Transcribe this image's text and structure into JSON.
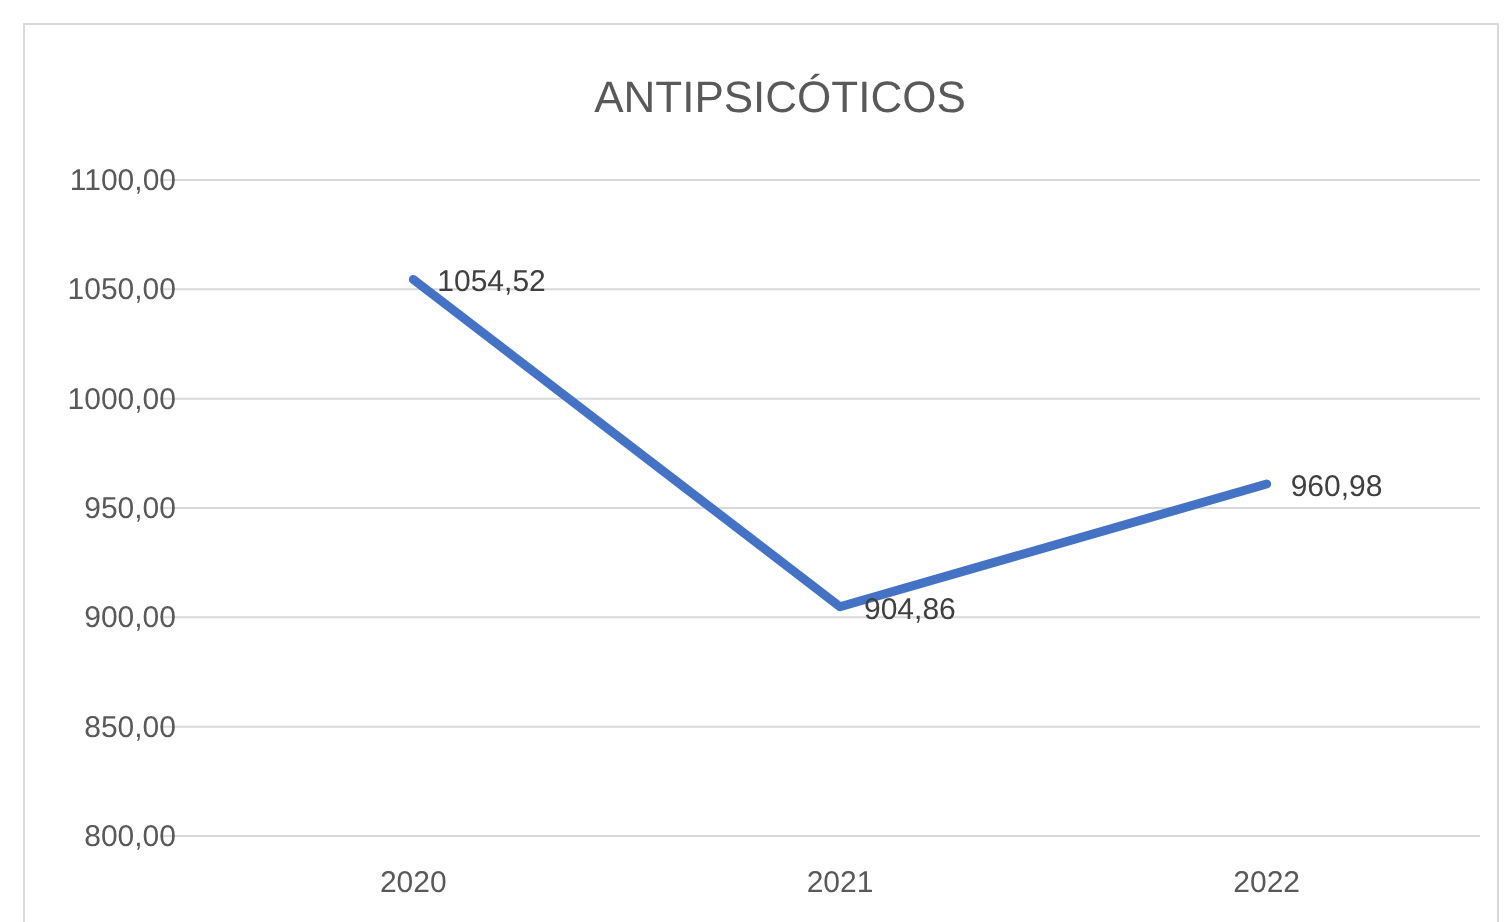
{
  "chart_data": {
    "type": "line",
    "title": "ANTIPSICÓTICOS",
    "categories": [
      "2020",
      "2021",
      "2022"
    ],
    "series": [
      {
        "color": "#4472c4",
        "values": [
          1054.52,
          904.86,
          960.98
        ],
        "value_labels": [
          "1054,52",
          "904,86",
          "960,98"
        ]
      }
    ],
    "ylim": [
      800,
      1100
    ],
    "yticks": [
      {
        "value": 800,
        "label": "800,00"
      },
      {
        "value": 850,
        "label": "850,00"
      },
      {
        "value": 900,
        "label": "900,00"
      },
      {
        "value": 950,
        "label": "950,00"
      },
      {
        "value": 1000,
        "label": "1000,00"
      },
      {
        "value": 1050,
        "label": "1050,00"
      },
      {
        "value": 1100,
        "label": "1100,00"
      }
    ],
    "grid": "y",
    "marker": "none",
    "line_style": "solid"
  }
}
